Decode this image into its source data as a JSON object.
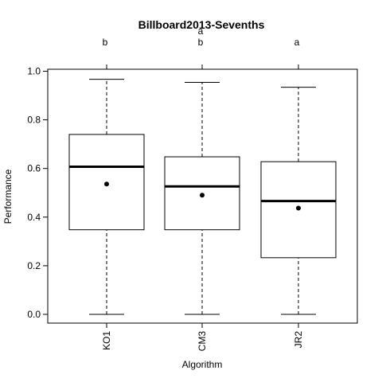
{
  "chart_data": {
    "type": "boxplot",
    "title": "Billboard2013-Sevenths",
    "xlabel": "Algorithm",
    "ylabel": "Performance",
    "ylim": [
      -0.03,
      1.0
    ],
    "yticks": [
      "0.0",
      "0.2",
      "0.4",
      "0.6",
      "0.8",
      "1.0"
    ],
    "categories": [
      "KO1",
      "CM3",
      "JR2"
    ],
    "group_letters": [
      [
        "b"
      ],
      [
        "a",
        "b"
      ],
      [
        "a"
      ]
    ],
    "boxes": [
      {
        "name": "KO1",
        "min": 0.0,
        "q1": 0.348,
        "median": 0.607,
        "q3": 0.74,
        "max": 0.967,
        "mean": 0.536
      },
      {
        "name": "CM3",
        "min": 0.0,
        "q1": 0.348,
        "median": 0.526,
        "q3": 0.648,
        "max": 0.954,
        "mean": 0.49
      },
      {
        "name": "JR2",
        "min": 0.0,
        "q1": 0.233,
        "median": 0.466,
        "q3": 0.628,
        "max": 0.934,
        "mean": 0.437
      }
    ],
    "grid": false,
    "legend": "none"
  }
}
